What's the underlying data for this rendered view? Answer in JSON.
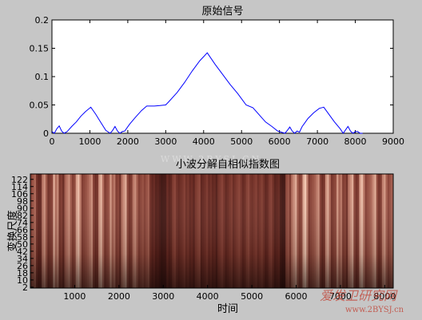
{
  "chart_data": [
    {
      "type": "line",
      "title": "原始信号",
      "xlabel": "",
      "ylabel": "",
      "xlim": [
        0,
        9000
      ],
      "ylim": [
        0,
        0.2
      ],
      "xticks": [
        "0",
        "1000",
        "2000",
        "3000",
        "4000",
        "5000",
        "6000",
        "7000",
        "8000",
        "9000"
      ],
      "yticks": [
        "0",
        "0.05",
        "0.1",
        "0.15",
        "0.2"
      ],
      "series": [
        {
          "color": "#0000ff",
          "x": [
            0,
            64,
            128,
            192,
            256,
            320,
            400,
            520,
            640,
            760,
            880,
            1024,
            1150,
            1280,
            1420,
            1536,
            1600,
            1664,
            1728,
            1792,
            1856,
            1920,
            2048,
            2200,
            2360,
            2500,
            2560,
            2700,
            2850,
            3000,
            3072,
            3300,
            3500,
            3700,
            3900,
            4096,
            4300,
            4500,
            4700,
            4900,
            5120,
            5300,
            5500,
            5632,
            5800,
            5950,
            6144,
            6208,
            6272,
            6336,
            6400,
            6464,
            6528,
            6600,
            6750,
            6900,
            7050,
            7168,
            7300,
            7450,
            7600,
            7680,
            7744,
            7808,
            7872,
            7936,
            8000,
            8064,
            8128,
            8192
          ],
          "y": [
            0.003,
            0,
            0.008,
            0.013,
            0.004,
            0,
            0.003,
            0.012,
            0.02,
            0.03,
            0.038,
            0.046,
            0.034,
            0.02,
            0.005,
            0,
            0.005,
            0.012,
            0.004,
            0,
            0.003,
            0.004,
            0.016,
            0.028,
            0.04,
            0.048,
            0.048,
            0.048,
            0.049,
            0.05,
            0.055,
            0.072,
            0.09,
            0.11,
            0.128,
            0.142,
            0.122,
            0.104,
            0.086,
            0.07,
            0.05,
            0.045,
            0.03,
            0.02,
            0.012,
            0.004,
            0,
            0.005,
            0.011,
            0.004,
            0,
            0.004,
            0.002,
            0.012,
            0.026,
            0.036,
            0.044,
            0.046,
            0.034,
            0.02,
            0.008,
            0,
            0.006,
            0.012,
            0.004,
            0,
            0.003,
            0.003,
            0,
            0
          ]
        }
      ]
    },
    {
      "type": "heatmap",
      "title": "小波分解自相似指数图",
      "xlabel": "时间",
      "ylabel": "变换尺度",
      "xlim": [
        0,
        8192
      ],
      "ylim": [
        1,
        128
      ],
      "xticks": [
        "1000",
        "2000",
        "3000",
        "4000",
        "5000",
        "6000",
        "7000",
        "8000"
      ],
      "yticks": [
        "2",
        "10",
        "18",
        "26",
        "34",
        "42",
        "50",
        "58",
        "66",
        "74",
        "82",
        "90",
        "98",
        "106",
        "114",
        "122"
      ],
      "colormap": "pink",
      "stripe_intensity_by_time": [
        [
          0,
          0.55
        ],
        [
          128,
          0.2
        ],
        [
          256,
          0.75
        ],
        [
          384,
          0.3
        ],
        [
          512,
          0.85
        ],
        [
          640,
          0.25
        ],
        [
          768,
          0.7
        ],
        [
          896,
          0.4
        ],
        [
          1024,
          0.9
        ],
        [
          1152,
          0.35
        ],
        [
          1280,
          0.8
        ],
        [
          1408,
          0.3
        ],
        [
          1536,
          0.95
        ],
        [
          1664,
          0.4
        ],
        [
          1792,
          0.75
        ],
        [
          1920,
          0.3
        ],
        [
          2048,
          0.85
        ],
        [
          2176,
          0.3
        ],
        [
          2304,
          0.65
        ],
        [
          2432,
          0.35
        ],
        [
          2560,
          0.5
        ],
        [
          2688,
          0.2
        ],
        [
          2816,
          0.1
        ],
        [
          2944,
          0.05
        ],
        [
          3072,
          0.15
        ],
        [
          3200,
          0.3
        ],
        [
          3328,
          0.2
        ],
        [
          3456,
          0.25
        ],
        [
          3584,
          0.15
        ],
        [
          3712,
          0.3
        ],
        [
          3840,
          0.2
        ],
        [
          3968,
          0.25
        ],
        [
          4096,
          0.15
        ],
        [
          4224,
          0.3
        ],
        [
          4352,
          0.2
        ],
        [
          4480,
          0.25
        ],
        [
          4608,
          0.3
        ],
        [
          4736,
          0.2
        ],
        [
          4864,
          0.3
        ],
        [
          4992,
          0.25
        ],
        [
          5120,
          0.3
        ],
        [
          5248,
          0.2
        ],
        [
          5376,
          0.3
        ],
        [
          5504,
          0.15
        ],
        [
          5632,
          0.05
        ],
        [
          5760,
          0.4
        ],
        [
          5888,
          0.85
        ],
        [
          6016,
          0.4
        ],
        [
          6144,
          0.95
        ],
        [
          6272,
          0.35
        ],
        [
          6400,
          0.8
        ],
        [
          6528,
          0.3
        ],
        [
          6656,
          0.9
        ],
        [
          6784,
          0.35
        ],
        [
          6912,
          0.75
        ],
        [
          7040,
          0.3
        ],
        [
          7168,
          0.85
        ],
        [
          7296,
          0.3
        ],
        [
          7424,
          0.9
        ],
        [
          7552,
          0.4
        ],
        [
          7680,
          0.95
        ],
        [
          7808,
          0.35
        ],
        [
          7936,
          0.8
        ],
        [
          8064,
          0.5
        ]
      ]
    }
  ],
  "watermark": {
    "text_cn": "爱发卫研究网",
    "url": "www.2BYSJ.cn",
    "center": "WWW.2BYSJ.CN"
  }
}
